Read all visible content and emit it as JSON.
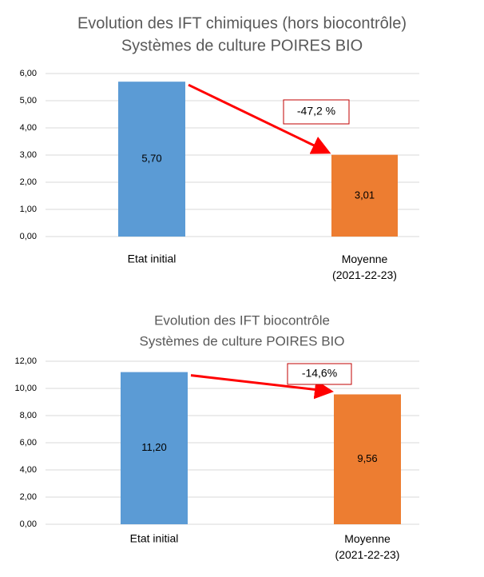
{
  "chart_data": [
    {
      "type": "bar",
      "title": "Evolution des IFT chimiques (hors biocontrôle)",
      "subtitle": "Systèmes de culture POIRES BIO",
      "categories": [
        "Etat initial",
        "Moyenne (2021-22-23)"
      ],
      "values": [
        5.7,
        3.01
      ],
      "value_labels": [
        "5,70",
        "3,01"
      ],
      "colors": [
        "#5b9bd5",
        "#ed7d31"
      ],
      "annotation": "-47,2 %",
      "ylim": [
        0,
        6
      ],
      "yticks": [
        {
          "value": 0,
          "label": "0,00"
        },
        {
          "value": 1,
          "label": "1,00"
        },
        {
          "value": 2,
          "label": "2,00"
        },
        {
          "value": 3,
          "label": "3,00"
        },
        {
          "value": 4,
          "label": "4,00"
        },
        {
          "value": 5,
          "label": "5,00"
        },
        {
          "value": 6,
          "label": "6,00"
        }
      ],
      "grid": true
    },
    {
      "type": "bar",
      "title": "Evolution des IFT biocontrôle",
      "subtitle": "Systèmes de culture POIRES BIO",
      "categories": [
        "Etat initial",
        "Moyenne (2021-22-23)"
      ],
      "values": [
        11.2,
        9.56
      ],
      "value_labels": [
        "11,20",
        "9,56"
      ],
      "colors": [
        "#5b9bd5",
        "#ed7d31"
      ],
      "annotation": "-14,6%",
      "ylim": [
        0,
        12
      ],
      "yticks": [
        {
          "value": 0,
          "label": "0,00"
        },
        {
          "value": 2,
          "label": "2,00"
        },
        {
          "value": 4,
          "label": "4,00"
        },
        {
          "value": 6,
          "label": "6,00"
        },
        {
          "value": 8,
          "label": "8,00"
        },
        {
          "value": 10,
          "label": "10,00"
        },
        {
          "value": 12,
          "label": "12,00"
        }
      ],
      "grid": true
    }
  ]
}
